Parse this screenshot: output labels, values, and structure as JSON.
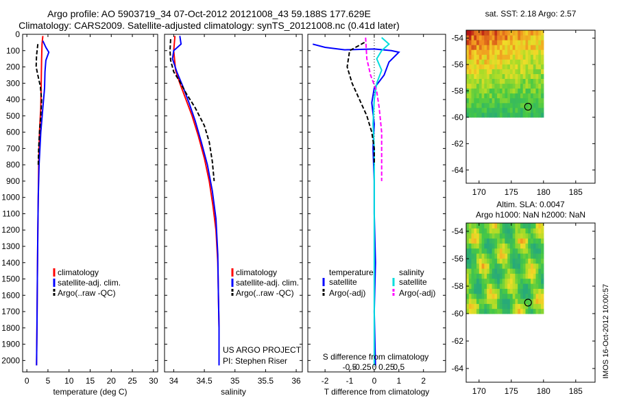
{
  "titles": {
    "line1": "Argo profile: AO 5903719_34 07-Oct-2012 20121008_43 59.188S 177.629E",
    "line2": "Climatology: CARS2009. Satellite-adjusted climatology: synTS_20121008.nc (0.41d later)"
  },
  "credit": "IMOS 16-Oct-2012 10:00:57",
  "colors": {
    "clim": "#ff0000",
    "sat": "#0000ff",
    "argo": "#000000",
    "sat_s": "#00dddd",
    "argo_s": "#ff00ff"
  },
  "chart_data": [
    {
      "type": "line",
      "xlabel": "temperature (deg C)",
      "ylabel": "",
      "xlim": [
        -1,
        31
      ],
      "ylim": [
        2070,
        0
      ],
      "xticks": [
        0,
        5,
        10,
        15,
        20,
        25,
        30
      ],
      "yticks": [
        0,
        100,
        200,
        300,
        400,
        500,
        600,
        700,
        800,
        900,
        1000,
        1100,
        1200,
        1300,
        1400,
        1500,
        1600,
        1700,
        1800,
        1900,
        2000
      ],
      "legend": [
        "climatology",
        "satellite-adj. clim.",
        "Argo(..raw -QC)"
      ],
      "series": [
        {
          "name": "climatology",
          "color": "clim",
          "dash": false,
          "points": [
            [
              3.8,
              10
            ],
            [
              3.6,
              60
            ],
            [
              3.5,
              150
            ],
            [
              3.4,
              300
            ],
            [
              3.3,
              450
            ],
            [
              3.0,
              600
            ],
            [
              2.8,
              800
            ],
            [
              2.7,
              1000
            ],
            [
              2.6,
              1200
            ],
            [
              2.5,
              1500
            ],
            [
              2.4,
              1800
            ],
            [
              2.3,
              2030
            ]
          ]
        },
        {
          "name": "satellite-adj. clim.",
          "color": "sat",
          "dash": false,
          "points": [
            [
              3.8,
              40
            ],
            [
              4.5,
              80
            ],
            [
              5.2,
              110
            ],
            [
              4.5,
              160
            ],
            [
              4.3,
              230
            ],
            [
              4.2,
              330
            ],
            [
              3.8,
              450
            ],
            [
              3.3,
              600
            ],
            [
              2.9,
              800
            ],
            [
              2.7,
              1000
            ],
            [
              2.6,
              1200
            ],
            [
              2.5,
              1500
            ],
            [
              2.4,
              1800
            ],
            [
              2.3,
              2030
            ]
          ]
        },
        {
          "name": "Argo(..raw -QC)",
          "color": "argo",
          "dash": true,
          "points": [
            [
              2.6,
              60
            ],
            [
              2.3,
              130
            ],
            [
              2.2,
              200
            ],
            [
              2.6,
              250
            ],
            [
              3.2,
              320
            ],
            [
              3.5,
              400
            ],
            [
              3.3,
              500
            ],
            [
              3.0,
              600
            ],
            [
              2.8,
              700
            ],
            [
              2.7,
              800
            ]
          ]
        }
      ]
    },
    {
      "type": "line",
      "xlabel": "salinity",
      "ylabel": "",
      "xlim": [
        33.85,
        36.1
      ],
      "ylim": [
        2070,
        0
      ],
      "xticks": [
        34,
        34.5,
        35,
        35.5,
        36
      ],
      "legend": [
        "climatology",
        "satellite-adj. clim.",
        "Argo(..raw -QC)"
      ],
      "annotation": [
        "US ARGO PROJECT",
        "PI: Stephen Riser"
      ],
      "series": [
        {
          "name": "climatology",
          "color": "clim",
          "dash": false,
          "points": [
            [
              34.02,
              10
            ],
            [
              34.0,
              100
            ],
            [
              34.03,
              220
            ],
            [
              34.1,
              300
            ],
            [
              34.2,
              400
            ],
            [
              34.3,
              500
            ],
            [
              34.4,
              620
            ],
            [
              34.5,
              760
            ],
            [
              34.58,
              900
            ],
            [
              34.64,
              1050
            ],
            [
              34.69,
              1200
            ],
            [
              34.72,
              1400
            ],
            [
              34.73,
              1600
            ],
            [
              34.74,
              1800
            ],
            [
              34.74,
              2030
            ]
          ]
        },
        {
          "name": "satellite-adj. clim.",
          "color": "sat",
          "dash": false,
          "points": [
            [
              34.1,
              10
            ],
            [
              34.12,
              60
            ],
            [
              34.0,
              100
            ],
            [
              33.98,
              150
            ],
            [
              34.05,
              230
            ],
            [
              34.15,
              320
            ],
            [
              34.25,
              420
            ],
            [
              34.35,
              530
            ],
            [
              34.45,
              660
            ],
            [
              34.55,
              800
            ],
            [
              34.63,
              960
            ],
            [
              34.69,
              1130
            ],
            [
              34.72,
              1350
            ],
            [
              34.73,
              1600
            ],
            [
              34.74,
              1800
            ],
            [
              34.74,
              2030
            ]
          ]
        },
        {
          "name": "Argo(..raw -QC)",
          "color": "argo",
          "dash": true,
          "points": [
            [
              33.95,
              30
            ],
            [
              33.94,
              100
            ],
            [
              33.95,
              160
            ],
            [
              34.0,
              230
            ],
            [
              34.1,
              290
            ],
            [
              34.2,
              360
            ],
            [
              34.35,
              450
            ],
            [
              34.5,
              560
            ],
            [
              34.58,
              660
            ],
            [
              34.63,
              780
            ],
            [
              34.66,
              900
            ]
          ]
        }
      ]
    },
    {
      "type": "line",
      "xlabel": "T difference from climatology",
      "x2label": "S difference from climatology",
      "xlim": [
        -2.7,
        2.9
      ],
      "ylim": [
        2070,
        0
      ],
      "xticks": [
        -2,
        -1,
        0,
        1,
        2
      ],
      "x2ticks": [
        "-0.5",
        "-0.25",
        "0",
        "0.25",
        "0.5"
      ],
      "legend_headers": [
        "temperature",
        "salinity"
      ],
      "legend": [
        "satellite",
        "Argo(-adj)",
        "satellite",
        "Argo(-adj)"
      ],
      "series": [
        {
          "name": "satellite",
          "color": "sat",
          "dash": false,
          "points": [
            [
              -2.5,
              60
            ],
            [
              -2.0,
              80
            ],
            [
              -1.2,
              95
            ],
            [
              0.0,
              90
            ],
            [
              0.7,
              100
            ],
            [
              1.0,
              110
            ],
            [
              0.6,
              170
            ],
            [
              0.4,
              250
            ],
            [
              0.0,
              330
            ],
            [
              -0.1,
              420
            ],
            [
              0.0,
              550
            ],
            [
              -0.05,
              700
            ],
            [
              0.0,
              900
            ],
            [
              0.0,
              1100
            ],
            [
              0.05,
              1400
            ],
            [
              0.0,
              1700
            ],
            [
              0.05,
              2030
            ]
          ]
        },
        {
          "name": "satellite",
          "color": "sat_s",
          "dash": false,
          "points": [
            [
              0.3,
              20
            ],
            [
              0.6,
              60
            ],
            [
              0.3,
              100
            ],
            [
              0.1,
              150
            ],
            [
              0.3,
              220
            ],
            [
              0.1,
              300
            ],
            [
              0.0,
              400
            ],
            [
              -0.05,
              550
            ],
            [
              0.0,
              700
            ],
            [
              0.0,
              1000
            ],
            [
              0.0,
              1300
            ],
            [
              0.0,
              1600
            ],
            [
              0.0,
              2030
            ]
          ]
        },
        {
          "name": "Argo(-adj)",
          "color": "argo",
          "dash": true,
          "points": [
            [
              -0.4,
              50
            ],
            [
              -1.0,
              100
            ],
            [
              -1.1,
              200
            ],
            [
              -0.9,
              300
            ],
            [
              -0.6,
              400
            ],
            [
              -0.3,
              500
            ],
            [
              -0.1,
              600
            ],
            [
              0.0,
              700
            ],
            [
              0.0,
              800
            ]
          ]
        },
        {
          "name": "Argo(-adj)",
          "color": "argo_s",
          "dash": true,
          "points": [
            [
              -0.35,
              20
            ],
            [
              -0.3,
              150
            ],
            [
              -0.15,
              250
            ],
            [
              0.1,
              350
            ],
            [
              0.2,
              450
            ],
            [
              0.3,
              600
            ],
            [
              0.3,
              800
            ],
            [
              0.3,
              900
            ]
          ]
        }
      ]
    },
    {
      "type": "heatmap",
      "title": "sat. SST: 2.18 Argo: 2.57",
      "xlim": [
        168,
        188
      ],
      "ylim": [
        -65,
        -53.4
      ],
      "xticks": [
        170,
        175,
        180,
        185
      ],
      "yticks": [
        -54,
        -56,
        -58,
        -60,
        -62,
        -64
      ],
      "data_extent": {
        "lon": [
          168,
          180
        ],
        "lat": [
          -60,
          -53.4
        ]
      },
      "argo_position": {
        "lon": 177.6,
        "lat": -59.2
      }
    },
    {
      "type": "heatmap",
      "title": "Altim. SLA: 0.0047",
      "subtitle": "Argo h1000: NaN h2000: NaN",
      "xlim": [
        168,
        188
      ],
      "ylim": [
        -65,
        -53.4
      ],
      "xticks": [
        170,
        175,
        180,
        185
      ],
      "yticks": [
        -54,
        -56,
        -58,
        -60,
        -62,
        -64
      ],
      "data_extent": {
        "lon": [
          168,
          180
        ],
        "lat": [
          -60,
          -53.4
        ]
      },
      "argo_position": {
        "lon": 177.6,
        "lat": -59.2
      }
    }
  ]
}
